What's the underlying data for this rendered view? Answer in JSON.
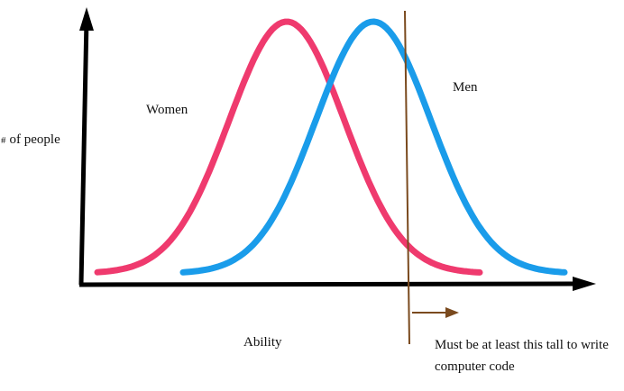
{
  "chart_data": {
    "type": "line",
    "xlabel": "Ability",
    "ylabel_symbol": "#",
    "ylabel_text": "of people",
    "series": [
      {
        "name": "Women",
        "mean": 0,
        "color": "#ef3a6e"
      },
      {
        "name": "Men",
        "mean": 1,
        "color": "#1a9cea"
      }
    ],
    "threshold": {
      "text": "Must be at least this tall to write computer code",
      "color": "#7a4a1e"
    }
  }
}
